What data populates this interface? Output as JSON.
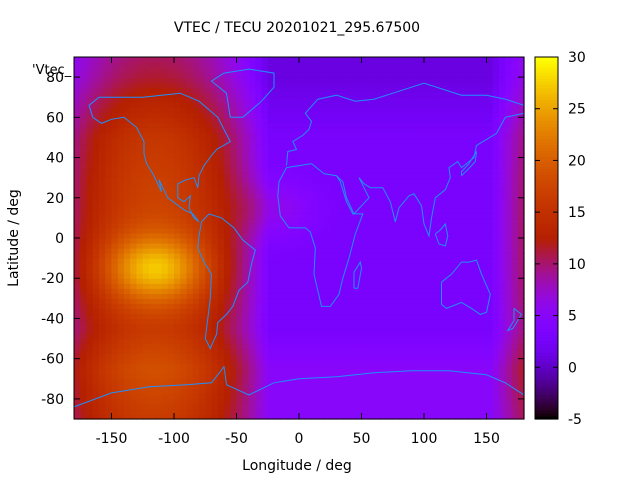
{
  "chart_data": {
    "type": "heatmap",
    "title": "VTEC / TECU 20201021_295.67500",
    "xlabel": "Longitude / deg",
    "ylabel": "Latitude / deg",
    "key_label": "'Vtec_",
    "xlim": [
      -180,
      180
    ],
    "ylim": [
      -90,
      90
    ],
    "x_ticks": [
      -150,
      -100,
      -50,
      0,
      50,
      100,
      150
    ],
    "y_ticks": [
      -80,
      -60,
      -40,
      -20,
      0,
      20,
      40,
      60,
      80
    ],
    "colorbar": {
      "range": [
        -5,
        30
      ],
      "ticks": [
        -5,
        0,
        5,
        10,
        15,
        20,
        25,
        30
      ],
      "palette": "gnuplot-pm3d"
    },
    "grid": false,
    "field_model": {
      "description": "smooth approximation of the VTEC map",
      "peak_value": 29,
      "peak_location": [
        -115,
        -15
      ],
      "night_minimum": 3
    },
    "coastline_color": "#1e90ff"
  }
}
